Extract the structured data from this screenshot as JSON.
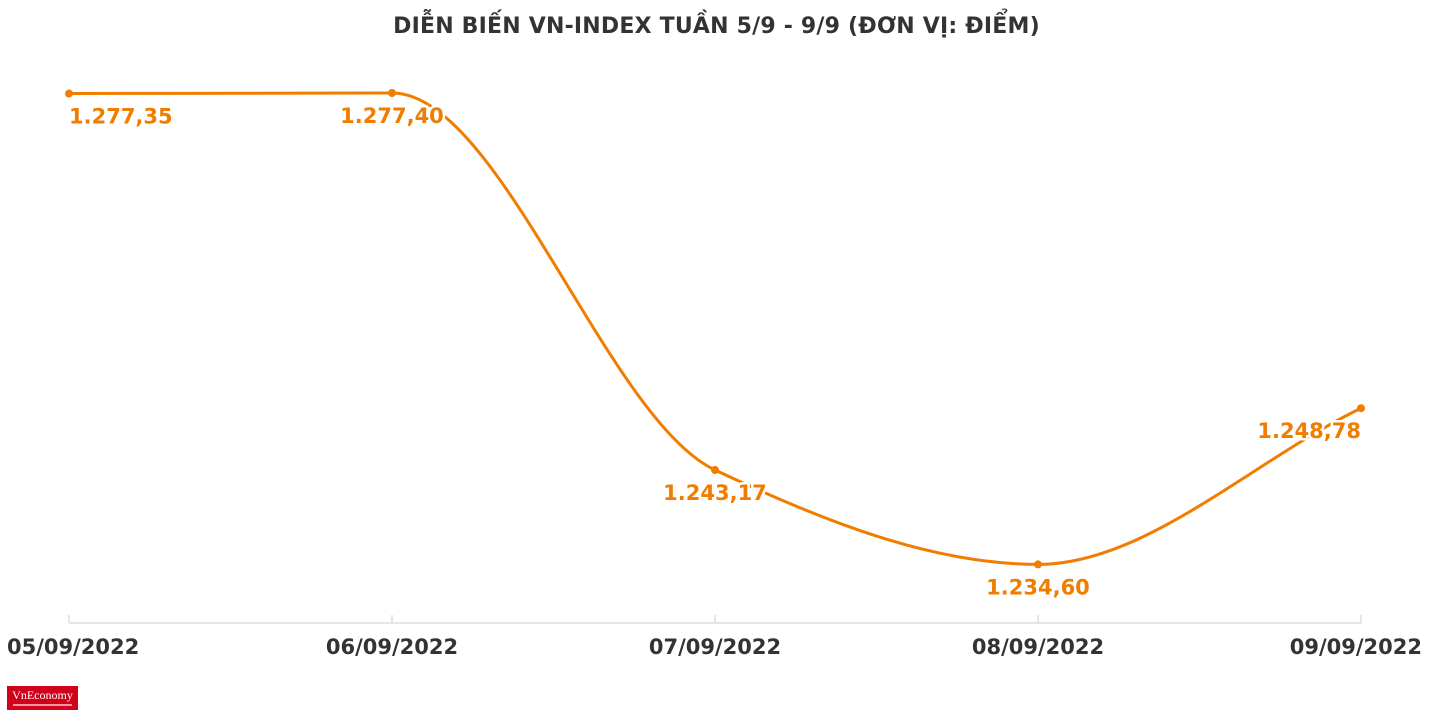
{
  "header": {
    "title": "DIỄN BIẾN VN-INDEX TUẦN 5/9 - 9/9 (ĐƠN VỊ: ĐIỂM)"
  },
  "brand": {
    "logo_text": "VnEconomy",
    "logo_color": "#d0021b"
  },
  "colors": {
    "line": "#f07d00",
    "label": "#f07d00",
    "axis": "#dddddd",
    "tick_text": "#333333"
  },
  "chart_data": {
    "type": "line",
    "title": "DIỄN BIẾN VN-INDEX TUẦN 5/9 - 9/9 (ĐƠN VỊ: ĐIỂM)",
    "xlabel": "",
    "ylabel": "",
    "categories": [
      "05/09/2022",
      "06/09/2022",
      "07/09/2022",
      "08/09/2022",
      "09/09/2022"
    ],
    "series": [
      {
        "values": [
          1277.35,
          1277.4,
          1243.17,
          1234.6,
          1248.78
        ],
        "data_labels": [
          "1.277,35",
          "1.277,40",
          "1.243,17",
          "1.234,60",
          "1.248,78"
        ]
      }
    ],
    "ylim": [
      1229.28,
      1277.4
    ],
    "grid": false,
    "legend": "none",
    "smooth": true
  }
}
